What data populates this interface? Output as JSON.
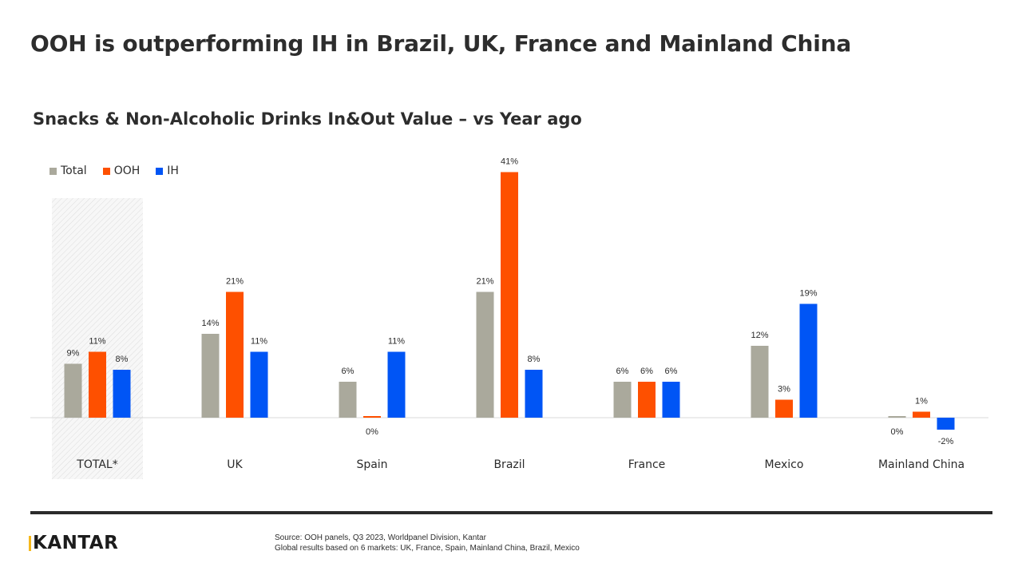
{
  "title": "OOH is outperforming IH in Brazil, UK, France and Mainland China",
  "subtitle": "Snacks & Non-Alcoholic Drinks In&Out Value – vs Year ago",
  "legend": [
    {
      "label": "Total",
      "color": "#aaa99c"
    },
    {
      "label": "OOH",
      "color": "#fe5000"
    },
    {
      "label": "IH",
      "color": "#0055f5"
    }
  ],
  "chart_data": {
    "type": "bar",
    "categories": [
      "TOTAL*",
      "UK",
      "Spain",
      "Brazil",
      "France",
      "Mexico",
      "Mainland China"
    ],
    "series": [
      {
        "name": "Total",
        "color": "#aaa99c",
        "values": [
          9,
          14,
          6,
          21,
          6,
          12,
          0
        ],
        "labels": [
          "9%",
          "14%",
          "6%",
          "21%",
          "6%",
          "12%",
          "0%"
        ]
      },
      {
        "name": "OOH",
        "color": "#fe5000",
        "values": [
          11,
          21,
          0,
          41,
          6,
          3,
          1
        ],
        "labels": [
          "11%",
          "21%",
          "0%",
          "41%",
          "6%",
          "3%",
          "1%"
        ]
      },
      {
        "name": "IH",
        "color": "#0055f5",
        "values": [
          8,
          11,
          11,
          8,
          6,
          19,
          -2
        ],
        "labels": [
          "8%",
          "11%",
          "11%",
          "8%",
          "6%",
          "19%",
          "-2%"
        ]
      }
    ],
    "highlighted_category": "TOTAL*",
    "unit": "%",
    "ylim": [
      -3,
      43
    ],
    "legend_position": "top-left"
  },
  "footer": {
    "logo": "KANTAR",
    "source_line1": "Source: OOH panels, Q3 2023, Worldpanel Division, Kantar",
    "source_line2": "Global results based on 6 markets: UK, France, Spain, Mainland China, Brazil, Mexico"
  }
}
